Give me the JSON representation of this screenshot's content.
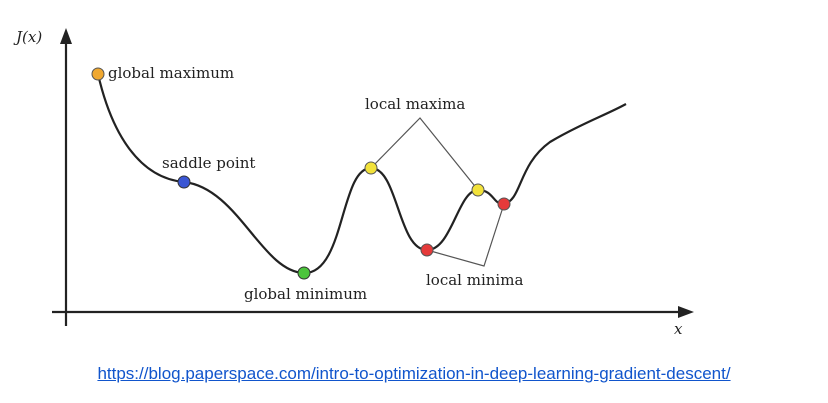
{
  "diagram": {
    "y_axis_label": "J(x)",
    "x_axis_label": "x",
    "labels": {
      "global_maximum": "global maximum",
      "saddle_point": "saddle point",
      "global_minimum": "global minimum",
      "local_maxima": "local maxima",
      "local_minima": "local minima"
    },
    "colors": {
      "global_maximum": "#f0a830",
      "saddle_point": "#3a56d4",
      "global_minimum": "#4cc43c",
      "local_maximum": "#f2e23a",
      "local_minimum": "#e53a3a",
      "curve": "#222222",
      "connector": "#555555"
    }
  },
  "source": {
    "url": "https://blog.paperspace.com/intro-to-optimization-in-deep-learning-gradient-descent/"
  }
}
